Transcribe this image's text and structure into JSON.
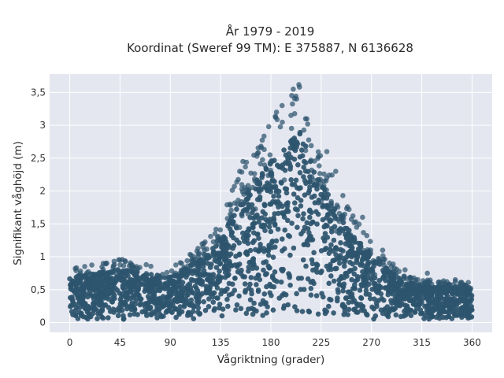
{
  "chart_data": {
    "type": "scatter",
    "title_line1": "År 1979 - 2019",
    "title_line2": "Koordinat (Sweref 99 TM): E 375887, N 6136628",
    "xlabel": "Vågriktning (grader)",
    "ylabel": "Signifikant våghöjd (m)",
    "xlim": [
      -18,
      378
    ],
    "ylim": [
      -0.15,
      3.78
    ],
    "xticks": [
      0,
      45,
      90,
      135,
      180,
      225,
      270,
      315,
      360
    ],
    "xtick_labels": [
      "0",
      "45",
      "90",
      "135",
      "180",
      "225",
      "270",
      "315",
      "360"
    ],
    "yticks": [
      0,
      0.5,
      1,
      1.5,
      2,
      2.5,
      3,
      3.5
    ],
    "ytick_labels": [
      "0",
      "0,5",
      "1",
      "1,5",
      "2",
      "2,5",
      "3",
      "3,5"
    ],
    "grid": true,
    "colors": {
      "marker": "#2e556e",
      "plot_bg": "#e5e7f0",
      "grid": "#ffffff"
    },
    "envelope": [
      {
        "x": 0,
        "y": 0.8
      },
      {
        "x": 45,
        "y": 0.95
      },
      {
        "x": 90,
        "y": 0.8
      },
      {
        "x": 120,
        "y": 1.2
      },
      {
        "x": 135,
        "y": 1.5
      },
      {
        "x": 150,
        "y": 2.2
      },
      {
        "x": 180,
        "y": 3.0
      },
      {
        "x": 205,
        "y": 3.62
      },
      {
        "x": 225,
        "y": 2.6
      },
      {
        "x": 250,
        "y": 1.7
      },
      {
        "x": 270,
        "y": 1.2
      },
      {
        "x": 300,
        "y": 0.7
      },
      {
        "x": 315,
        "y": 0.65
      },
      {
        "x": 360,
        "y": 0.6
      }
    ],
    "highlights": [
      {
        "x": 205,
        "y": 3.62
      },
      {
        "x": 200,
        "y": 3.55
      },
      {
        "x": 203,
        "y": 3.4
      },
      {
        "x": 190,
        "y": 3.3
      },
      {
        "x": 185,
        "y": 3.2
      },
      {
        "x": 198,
        "y": 3.15
      },
      {
        "x": 211,
        "y": 3.1
      },
      {
        "x": 178,
        "y": 2.98
      },
      {
        "x": 155,
        "y": 2.45
      },
      {
        "x": 152,
        "y": 2.3
      },
      {
        "x": 230,
        "y": 2.6
      },
      {
        "x": 238,
        "y": 2.3
      },
      {
        "x": 250,
        "y": 1.72
      },
      {
        "x": 262,
        "y": 1.6
      },
      {
        "x": 280,
        "y": 1.1
      },
      {
        "x": 300,
        "y": 0.8
      },
      {
        "x": 320,
        "y": 0.75
      },
      {
        "x": 345,
        "y": 0.65
      },
      {
        "x": 30,
        "y": 0.9
      },
      {
        "x": 45,
        "y": 0.95
      },
      {
        "x": 5,
        "y": 0.82
      },
      {
        "x": 100,
        "y": 0.9
      },
      {
        "x": 115,
        "y": 1.0
      },
      {
        "x": 120,
        "y": 1.2
      },
      {
        "x": 130,
        "y": 1.35
      }
    ]
  }
}
